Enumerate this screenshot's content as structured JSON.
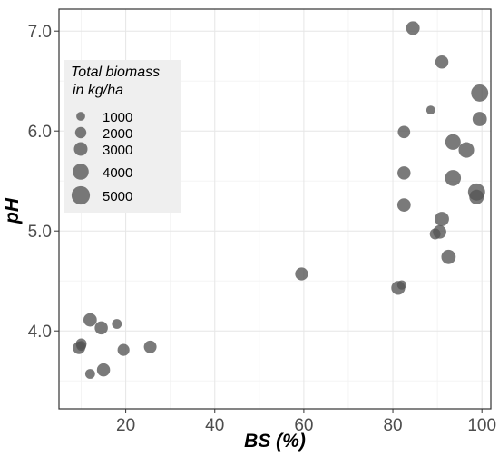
{
  "chart_data": {
    "type": "scatter",
    "xlabel": "BS (%)",
    "ylabel": "pH",
    "xlim": [
      5,
      102
    ],
    "ylim": [
      3.22,
      7.22
    ],
    "x_ticks": [
      20,
      40,
      60,
      80,
      100
    ],
    "y_ticks": [
      4.0,
      5.0,
      6.0,
      7.0
    ],
    "x_tick_labels": [
      "20",
      "40",
      "60",
      "80",
      "100"
    ],
    "y_tick_labels": [
      "4.0",
      "5.0",
      "6.0",
      "7.0"
    ],
    "grid": true,
    "point_color": "#555555",
    "legend": {
      "title_lines": [
        "Total biomass",
        "in kg/ha"
      ],
      "placement": "top-left",
      "entries": [
        {
          "label": "1000",
          "size": 1000
        },
        {
          "label": "2000",
          "size": 2000
        },
        {
          "label": "3000",
          "size": 3000
        },
        {
          "label": "4000",
          "size": 4000
        },
        {
          "label": "5000",
          "size": 5000
        }
      ]
    },
    "points": [
      {
        "x": 84.5,
        "y": 7.03,
        "biomass": 3000
      },
      {
        "x": 91.0,
        "y": 6.69,
        "biomass": 2800
      },
      {
        "x": 99.5,
        "y": 6.38,
        "biomass": 4500
      },
      {
        "x": 88.5,
        "y": 6.21,
        "biomass": 1000
      },
      {
        "x": 99.5,
        "y": 6.12,
        "biomass": 3300
      },
      {
        "x": 82.5,
        "y": 5.99,
        "biomass": 2500
      },
      {
        "x": 93.5,
        "y": 5.89,
        "biomass": 3800
      },
      {
        "x": 96.5,
        "y": 5.81,
        "biomass": 3800
      },
      {
        "x": 82.5,
        "y": 5.58,
        "biomass": 2800
      },
      {
        "x": 93.5,
        "y": 5.53,
        "biomass": 4000
      },
      {
        "x": 98.8,
        "y": 5.39,
        "biomass": 4500
      },
      {
        "x": 98.8,
        "y": 5.34,
        "biomass": 3400
      },
      {
        "x": 82.5,
        "y": 5.26,
        "biomass": 2900
      },
      {
        "x": 91.0,
        "y": 5.12,
        "biomass": 3300
      },
      {
        "x": 90.5,
        "y": 4.99,
        "biomass": 2900
      },
      {
        "x": 89.5,
        "y": 4.97,
        "biomass": 1800
      },
      {
        "x": 92.5,
        "y": 4.74,
        "biomass": 3300
      },
      {
        "x": 59.5,
        "y": 4.57,
        "biomass": 2700
      },
      {
        "x": 82.0,
        "y": 4.46,
        "biomass": 1200
      },
      {
        "x": 81.2,
        "y": 4.43,
        "biomass": 3100
      },
      {
        "x": 12.0,
        "y": 4.11,
        "biomass": 2900
      },
      {
        "x": 18.0,
        "y": 4.07,
        "biomass": 1400
      },
      {
        "x": 14.5,
        "y": 4.03,
        "biomass": 2800
      },
      {
        "x": 10.0,
        "y": 3.87,
        "biomass": 1800
      },
      {
        "x": 10.0,
        "y": 3.85,
        "biomass": 1400
      },
      {
        "x": 9.5,
        "y": 3.83,
        "biomass": 2500
      },
      {
        "x": 25.5,
        "y": 3.84,
        "biomass": 2600
      },
      {
        "x": 19.5,
        "y": 3.81,
        "biomass": 2300
      },
      {
        "x": 15.0,
        "y": 3.61,
        "biomass": 2800
      },
      {
        "x": 12.0,
        "y": 3.57,
        "biomass": 1400
      }
    ]
  }
}
